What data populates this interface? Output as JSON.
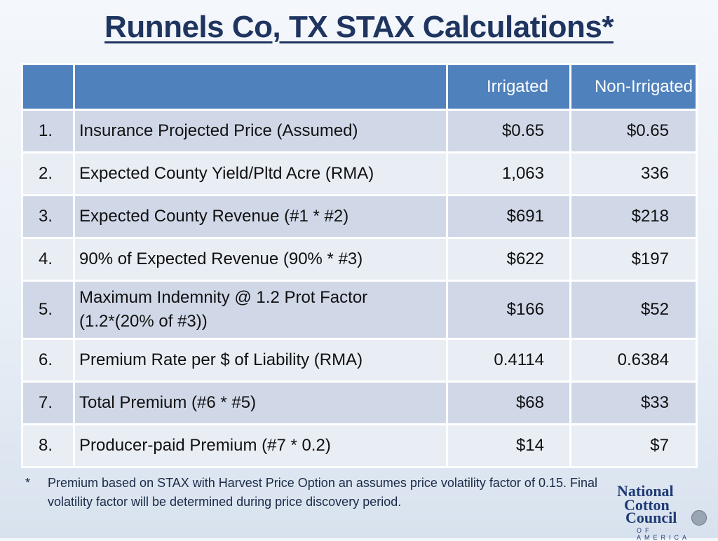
{
  "title": "Runnels Co, TX STAX Calculations*",
  "table": {
    "headers": [
      "",
      "",
      "Irrigated",
      "Non-Irrigated"
    ],
    "rows": [
      {
        "num": "1.",
        "desc": "Insurance Projected Price (Assumed)",
        "irrigated": "$0.65",
        "non_irrigated": "$0.65"
      },
      {
        "num": "2.",
        "desc": "Expected County Yield/Pltd Acre (RMA)",
        "irrigated": "1,063",
        "non_irrigated": "336"
      },
      {
        "num": "3.",
        "desc": "Expected County Revenue (#1 * #2)",
        "irrigated": "$691",
        "non_irrigated": "$218"
      },
      {
        "num": "4.",
        "desc": "90% of Expected Revenue (90% * #3)",
        "irrigated": "$622",
        "non_irrigated": "$197"
      },
      {
        "num": "5.",
        "desc": "Maximum Indemnity @ 1.2 Prot Factor",
        "desc2": "(1.2*(20% of #3))",
        "irrigated": "$166",
        "non_irrigated": "$52"
      },
      {
        "num": "6.",
        "desc": "Premium Rate per $ of Liability (RMA)",
        "irrigated": "0.4114",
        "non_irrigated": "0.6384"
      },
      {
        "num": "7.",
        "desc": "Total Premium (#6 * #5)",
        "irrigated": "$68",
        "non_irrigated": "$33"
      },
      {
        "num": "8.",
        "desc": "Producer-paid Premium (#7 * 0.2)",
        "irrigated": "$14",
        "non_irrigated": "$7"
      }
    ]
  },
  "footnote": {
    "marker": "*",
    "text": "Premium based on STAX with Harvest Price Option an assumes price volatility factor of 0.15. Final volatility factor will be determined during price discovery period."
  },
  "logo": {
    "line1": "National",
    "line2": "Cotton",
    "line3": "Council",
    "line4": "OF AMERICA"
  },
  "colors": {
    "header_blue": "#4f81bd",
    "row_dark": "#d0d8e8",
    "row_light": "#e9edf4",
    "title": "#1f3560"
  }
}
